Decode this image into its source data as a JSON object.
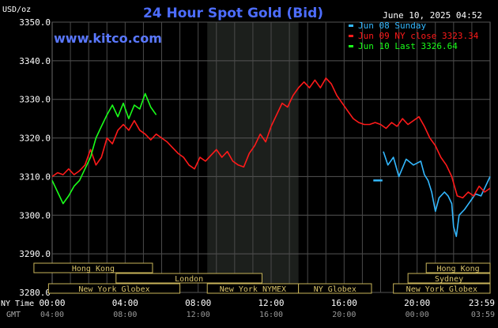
{
  "header": {
    "title": "24 Hour Spot Gold (Bid)",
    "unit": "USD/oz",
    "watermark": "www.kitco.com",
    "timestamp": "June 10, 2025 04:52"
  },
  "legend": [
    {
      "label": "Jun 08 Sunday",
      "color": "#33b8ff"
    },
    {
      "label": "Jun 09 NY close 3323.34",
      "color": "#ff1a1a"
    },
    {
      "label": "Jun 10 Last 3326.64",
      "color": "#1aff1a"
    }
  ],
  "sessions": {
    "row1": [
      {
        "label": "Hong Kong",
        "start": -1.0,
        "end": 5.5
      },
      {
        "label": "Hong Kong",
        "start": 20.5,
        "end": 24.0
      }
    ],
    "row2": [
      {
        "label": "London",
        "start": 3.5,
        "end": 11.5
      },
      {
        "label": "Sydney",
        "start": 19.5,
        "end": 24.0
      }
    ],
    "row3": [
      {
        "label": "New York Globex",
        "start": -0.2,
        "end": 7.0
      },
      {
        "label": "New York NYMEX",
        "start": 8.5,
        "end": 13.5
      },
      {
        "label": "NY Globex",
        "start": 13.5,
        "end": 17.5
      },
      {
        "label": "New York Globex",
        "start": 18.7,
        "end": 24.0
      }
    ]
  },
  "x_axis": {
    "ny_label": "NY Time",
    "gmt_label": "GMT",
    "ny_ticks": [
      "00:00",
      "04:00",
      "08:00",
      "12:00",
      "16:00",
      "20:00",
      "23:59"
    ],
    "gmt_ticks": [
      "04:00",
      "08:00",
      "12:00",
      "16:00",
      "20:00",
      "00:00",
      "03:59"
    ]
  },
  "chart_data": {
    "type": "line",
    "title": "24 Hour Spot Gold (Bid)",
    "ylabel": "USD/oz",
    "ylim": [
      3280,
      3350
    ],
    "xlim": [
      0,
      24
    ],
    "y_ticks": [
      "3280.0",
      "3290.0",
      "3300.0",
      "3310.0",
      "3320.0",
      "3330.0",
      "3340.0",
      "3350.0"
    ],
    "shaded_range": [
      8.5,
      13.5
    ],
    "grid": true,
    "legend_position": "top-right",
    "series": [
      {
        "name": "Jun 08 Sunday",
        "color": "#33b8ff",
        "segments": [
          [
            [
              17.6,
              3309.0
            ],
            [
              18.1,
              3309.0
            ]
          ],
          [
            [
              18.15,
              3316.5
            ],
            [
              18.4,
              3313.0
            ],
            [
              18.7,
              3315.0
            ],
            [
              19.0,
              3310.0
            ],
            [
              19.4,
              3314.5
            ],
            [
              19.8,
              3313.0
            ],
            [
              20.2,
              3314.0
            ],
            [
              20.4,
              3310.5
            ],
            [
              20.6,
              3309.0
            ],
            [
              20.8,
              3306.0
            ],
            [
              21.0,
              3301.0
            ],
            [
              21.2,
              3304.5
            ],
            [
              21.5,
              3306.0
            ],
            [
              21.7,
              3305.0
            ],
            [
              21.9,
              3303.0
            ],
            [
              22.0,
              3297.0
            ],
            [
              22.15,
              3294.5
            ],
            [
              22.3,
              3300.0
            ],
            [
              22.6,
              3301.5
            ],
            [
              22.9,
              3303.5
            ],
            [
              23.2,
              3305.5
            ],
            [
              23.5,
              3305.0
            ],
            [
              23.8,
              3308.0
            ],
            [
              24.0,
              3310.0
            ]
          ]
        ]
      },
      {
        "name": "Jun 09 NY close 3323.34",
        "color": "#ff1a1a",
        "segments": [
          [
            [
              0.0,
              3310.0
            ],
            [
              0.3,
              3311.0
            ],
            [
              0.6,
              3310.5
            ],
            [
              0.9,
              3312.0
            ],
            [
              1.2,
              3310.5
            ],
            [
              1.5,
              3311.5
            ],
            [
              1.8,
              3313.0
            ],
            [
              2.1,
              3317.0
            ],
            [
              2.4,
              3313.0
            ],
            [
              2.7,
              3315.0
            ],
            [
              3.0,
              3320.0
            ],
            [
              3.3,
              3318.5
            ],
            [
              3.6,
              3322.0
            ],
            [
              3.9,
              3323.5
            ],
            [
              4.2,
              3322.0
            ],
            [
              4.5,
              3324.5
            ],
            [
              4.8,
              3322.0
            ],
            [
              5.1,
              3321.0
            ],
            [
              5.4,
              3319.5
            ],
            [
              5.7,
              3321.0
            ],
            [
              6.0,
              3320.0
            ],
            [
              6.3,
              3319.0
            ],
            [
              6.6,
              3317.5
            ],
            [
              6.9,
              3316.0
            ],
            [
              7.2,
              3315.0
            ],
            [
              7.5,
              3313.0
            ],
            [
              7.8,
              3312.0
            ],
            [
              8.1,
              3315.0
            ],
            [
              8.4,
              3314.0
            ],
            [
              8.7,
              3315.5
            ],
            [
              9.0,
              3317.0
            ],
            [
              9.3,
              3315.0
            ],
            [
              9.6,
              3316.5
            ],
            [
              9.9,
              3314.0
            ],
            [
              10.2,
              3313.0
            ],
            [
              10.5,
              3312.5
            ],
            [
              10.8,
              3316.0
            ],
            [
              11.1,
              3318.0
            ],
            [
              11.4,
              3321.0
            ],
            [
              11.7,
              3319.0
            ],
            [
              12.0,
              3323.0
            ],
            [
              12.3,
              3326.0
            ],
            [
              12.6,
              3329.0
            ],
            [
              12.9,
              3328.0
            ],
            [
              13.2,
              3331.0
            ],
            [
              13.5,
              3333.0
            ],
            [
              13.8,
              3334.5
            ],
            [
              14.1,
              3333.0
            ],
            [
              14.4,
              3335.0
            ],
            [
              14.7,
              3333.0
            ],
            [
              15.0,
              3335.5
            ],
            [
              15.3,
              3334.0
            ],
            [
              15.6,
              3331.0
            ],
            [
              15.9,
              3329.0
            ],
            [
              16.2,
              3327.0
            ],
            [
              16.5,
              3325.0
            ],
            [
              16.8,
              3324.0
            ],
            [
              17.1,
              3323.5
            ],
            [
              17.4,
              3323.5
            ],
            [
              17.7,
              3324.0
            ],
            [
              18.0,
              3323.5
            ],
            [
              18.3,
              3322.5
            ],
            [
              18.6,
              3324.0
            ],
            [
              18.9,
              3323.0
            ],
            [
              19.2,
              3325.0
            ],
            [
              19.5,
              3323.5
            ],
            [
              19.8,
              3324.5
            ],
            [
              20.1,
              3325.5
            ],
            [
              20.4,
              3323.0
            ],
            [
              20.7,
              3320.0
            ],
            [
              21.0,
              3318.0
            ],
            [
              21.3,
              3315.0
            ],
            [
              21.6,
              3313.0
            ],
            [
              21.9,
              3310.0
            ],
            [
              22.2,
              3305.0
            ],
            [
              22.5,
              3304.5
            ],
            [
              22.8,
              3306.0
            ],
            [
              23.1,
              3305.0
            ],
            [
              23.4,
              3307.5
            ],
            [
              23.7,
              3306.0
            ],
            [
              24.0,
              3307.0
            ]
          ]
        ]
      },
      {
        "name": "Jun 10 Last 3326.64",
        "color": "#1aff1a",
        "segments": [
          [
            [
              0.0,
              3309.0
            ],
            [
              0.3,
              3306.0
            ],
            [
              0.6,
              3303.0
            ],
            [
              0.9,
              3305.0
            ],
            [
              1.2,
              3307.5
            ],
            [
              1.5,
              3309.0
            ],
            [
              1.8,
              3312.0
            ],
            [
              2.1,
              3315.0
            ],
            [
              2.4,
              3320.0
            ],
            [
              2.7,
              3323.0
            ],
            [
              3.0,
              3326.0
            ],
            [
              3.3,
              3328.5
            ],
            [
              3.6,
              3325.5
            ],
            [
              3.9,
              3329.0
            ],
            [
              4.2,
              3325.0
            ],
            [
              4.5,
              3328.5
            ],
            [
              4.8,
              3327.5
            ],
            [
              5.1,
              3331.5
            ],
            [
              5.4,
              3328.0
            ],
            [
              5.7,
              3326.0
            ]
          ]
        ]
      }
    ]
  }
}
